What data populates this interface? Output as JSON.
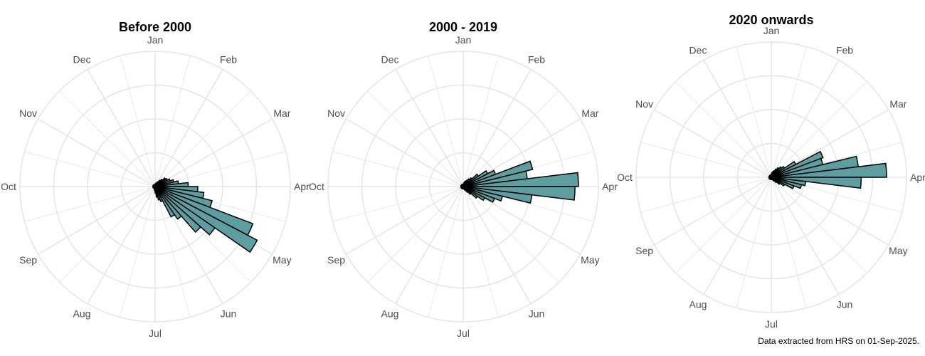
{
  "chart_data": [
    {
      "type": "rose",
      "title": "Before 2000",
      "categories": [
        "Jan",
        "Feb",
        "Mar",
        "Apr",
        "May",
        "Jun",
        "Jul",
        "Aug",
        "Sep",
        "Oct",
        "Nov",
        "Dec"
      ],
      "x_unit": "week of year",
      "x": [
        1,
        2,
        3,
        4,
        5,
        6,
        7,
        8,
        9,
        10,
        11,
        12,
        13,
        14,
        15,
        16,
        17,
        18,
        19,
        20,
        21,
        22,
        23,
        24,
        25,
        26,
        27,
        28,
        29,
        30,
        31,
        32,
        33,
        34,
        35,
        36,
        37,
        38,
        39,
        40,
        41,
        42,
        43,
        44,
        45,
        46,
        47,
        48,
        49,
        50,
        51,
        52
      ],
      "values": [
        0.02,
        0.03,
        0.03,
        0.04,
        0.05,
        0.07,
        0.09,
        0.12,
        0.13,
        0.15,
        0.18,
        0.22,
        0.31,
        0.4,
        0.46,
        0.55,
        0.98,
        1.08,
        0.68,
        0.57,
        0.37,
        0.32,
        0.15,
        0.13,
        0.1,
        0.06,
        0.04,
        0.03,
        0.02,
        0.02,
        0.02,
        0.02,
        0.02,
        0.02,
        0.02,
        0.02,
        0.02,
        0.02,
        0.02,
        0.02,
        0.02,
        0.02,
        0.02,
        0.02,
        0.02,
        0.02,
        0.02,
        0.02,
        0.02,
        0.02,
        0.02,
        0.02
      ],
      "grid": true
    },
    {
      "type": "rose",
      "title": "2000 - 2019",
      "categories": [
        "Jan",
        "Feb",
        "Mar",
        "Apr",
        "May",
        "Jun",
        "Jul",
        "Aug",
        "Sep",
        "Oct",
        "Nov",
        "Dec"
      ],
      "x_unit": "week of year",
      "x": [
        1,
        2,
        3,
        4,
        5,
        6,
        7,
        8,
        9,
        10,
        11,
        12,
        13,
        14,
        15,
        16,
        17,
        18,
        19,
        20,
        21,
        22,
        23,
        24,
        25,
        26,
        27,
        28,
        29,
        30,
        31,
        32,
        33,
        34,
        35,
        36,
        37,
        38,
        39,
        40,
        41,
        42,
        43,
        44,
        45,
        46,
        47,
        48,
        49,
        50,
        51,
        52
      ],
      "values": [
        0.02,
        0.03,
        0.04,
        0.05,
        0.06,
        0.08,
        0.1,
        0.16,
        0.24,
        0.3,
        0.62,
        0.56,
        1.0,
        0.97,
        0.6,
        0.35,
        0.29,
        0.21,
        0.15,
        0.09,
        0.06,
        0.04,
        0.03,
        0.02,
        0.02,
        0.02,
        0.02,
        0.02,
        0.02,
        0.02,
        0.02,
        0.02,
        0.02,
        0.02,
        0.02,
        0.02,
        0.02,
        0.02,
        0.02,
        0.02,
        0.02,
        0.02,
        0.02,
        0.02,
        0.02,
        0.02,
        0.02,
        0.02,
        0.02,
        0.02,
        0.02,
        0.02
      ],
      "grid": true
    },
    {
      "type": "rose",
      "title": "2020 onwards",
      "categories": [
        "Jan",
        "Feb",
        "Mar",
        "Apr",
        "May",
        "Jun",
        "Jul",
        "Aug",
        "Sep",
        "Oct",
        "Nov",
        "Dec"
      ],
      "x_unit": "week of year",
      "x": [
        1,
        2,
        3,
        4,
        5,
        6,
        7,
        8,
        9,
        10,
        11,
        12,
        13,
        14,
        15,
        16,
        17,
        18,
        19,
        20,
        21,
        22,
        23,
        24,
        25,
        26,
        27,
        28,
        29,
        30,
        31,
        32,
        33,
        34,
        35,
        36,
        37,
        38,
        39,
        40,
        41,
        42,
        43,
        44,
        45,
        46,
        47,
        48,
        49,
        50,
        51,
        52
      ],
      "values": [
        0.03,
        0.04,
        0.05,
        0.06,
        0.08,
        0.1,
        0.12,
        0.14,
        0.24,
        0.48,
        0.46,
        0.76,
        1.0,
        0.78,
        0.3,
        0.27,
        0.21,
        0.13,
        0.09,
        0.06,
        0.04,
        0.03,
        0.02,
        0.02,
        0.02,
        0.02,
        0.02,
        0.02,
        0.02,
        0.02,
        0.02,
        0.02,
        0.02,
        0.02,
        0.02,
        0.02,
        0.02,
        0.02,
        0.02,
        0.02,
        0.02,
        0.02,
        0.02,
        0.02,
        0.02,
        0.02,
        0.02,
        0.02,
        0.02,
        0.02,
        0.02,
        0.02
      ],
      "grid": true
    }
  ],
  "colors": {
    "bar_fill": "#5f9ea0",
    "bar_stroke": "#000000",
    "grid": "#e5e5e5",
    "label": "#4d4d4d"
  },
  "caption": "Data extracted from HRS on 01-Sep-2025."
}
